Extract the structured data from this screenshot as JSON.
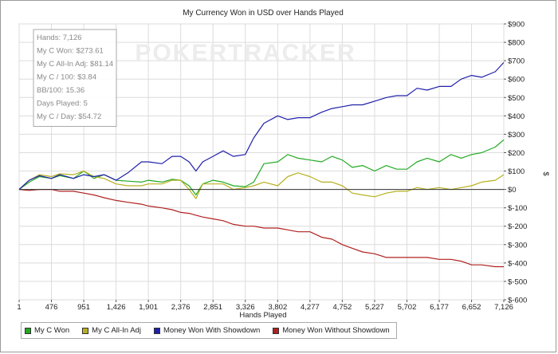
{
  "chart_data": {
    "type": "line",
    "title": "My Currency Won in USD over Hands Played",
    "xlabel": "Hands Played",
    "ylabel": "$",
    "x_ticks": [
      1,
      476,
      951,
      1426,
      1901,
      2376,
      2851,
      3326,
      3802,
      4277,
      4752,
      5227,
      5702,
      6177,
      6652,
      7126
    ],
    "xlim": [
      1,
      7126
    ],
    "ylim": [
      -600,
      900
    ],
    "y_ticks": [
      -600,
      -500,
      -400,
      -300,
      -200,
      -100,
      0,
      100,
      200,
      300,
      400,
      500,
      600,
      700,
      800,
      900
    ],
    "y_tick_labels": [
      "$-600",
      "$-500",
      "$-400",
      "$-300",
      "$-200",
      "$-100",
      "$0",
      "$100",
      "$200",
      "$300",
      "$400",
      "$500",
      "$600",
      "$700",
      "$800",
      "$900"
    ],
    "grid": true,
    "legend_position": "bottom-left",
    "watermark": "POKERTRACKER",
    "stats_box": [
      "Hands: 7,126",
      "My C Won: $273.61",
      "My C All-In Adj: $81.14",
      "My C / 100: $3.84",
      "BB/100: 15.36",
      "Days Played: 5",
      "My C / Day: $54.72"
    ],
    "series": [
      {
        "name": "My C Won",
        "color": "#22aa22",
        "points": [
          [
            1,
            0
          ],
          [
            150,
            40
          ],
          [
            300,
            70
          ],
          [
            476,
            60
          ],
          [
            600,
            75
          ],
          [
            800,
            60
          ],
          [
            951,
            100
          ],
          [
            1100,
            60
          ],
          [
            1250,
            80
          ],
          [
            1426,
            50
          ],
          [
            1600,
            45
          ],
          [
            1800,
            40
          ],
          [
            1901,
            50
          ],
          [
            2100,
            40
          ],
          [
            2250,
            55
          ],
          [
            2376,
            50
          ],
          [
            2500,
            20
          ],
          [
            2600,
            -30
          ],
          [
            2700,
            30
          ],
          [
            2851,
            50
          ],
          [
            3000,
            40
          ],
          [
            3150,
            20
          ],
          [
            3326,
            15
          ],
          [
            3450,
            40
          ],
          [
            3600,
            140
          ],
          [
            3802,
            150
          ],
          [
            3950,
            190
          ],
          [
            4100,
            170
          ],
          [
            4277,
            160
          ],
          [
            4450,
            150
          ],
          [
            4600,
            180
          ],
          [
            4752,
            160
          ],
          [
            4900,
            120
          ],
          [
            5050,
            130
          ],
          [
            5227,
            100
          ],
          [
            5400,
            130
          ],
          [
            5550,
            110
          ],
          [
            5702,
            110
          ],
          [
            5850,
            150
          ],
          [
            6000,
            170
          ],
          [
            6177,
            150
          ],
          [
            6350,
            190
          ],
          [
            6500,
            170
          ],
          [
            6652,
            190
          ],
          [
            6800,
            200
          ],
          [
            7000,
            230
          ],
          [
            7126,
            270
          ]
        ]
      },
      {
        "name": "My C All-In Adj",
        "color": "#b8b020",
        "points": [
          [
            1,
            0
          ],
          [
            150,
            50
          ],
          [
            300,
            80
          ],
          [
            476,
            70
          ],
          [
            600,
            85
          ],
          [
            800,
            80
          ],
          [
            951,
            100
          ],
          [
            1100,
            70
          ],
          [
            1250,
            60
          ],
          [
            1426,
            30
          ],
          [
            1600,
            20
          ],
          [
            1800,
            20
          ],
          [
            1901,
            30
          ],
          [
            2100,
            30
          ],
          [
            2250,
            50
          ],
          [
            2376,
            50
          ],
          [
            2500,
            0
          ],
          [
            2600,
            -50
          ],
          [
            2700,
            30
          ],
          [
            2851,
            30
          ],
          [
            3000,
            30
          ],
          [
            3150,
            0
          ],
          [
            3326,
            10
          ],
          [
            3450,
            20
          ],
          [
            3600,
            40
          ],
          [
            3802,
            20
          ],
          [
            3950,
            70
          ],
          [
            4100,
            90
          ],
          [
            4277,
            70
          ],
          [
            4450,
            40
          ],
          [
            4600,
            40
          ],
          [
            4752,
            20
          ],
          [
            4900,
            -20
          ],
          [
            5050,
            -30
          ],
          [
            5227,
            -40
          ],
          [
            5400,
            -20
          ],
          [
            5550,
            -10
          ],
          [
            5702,
            -10
          ],
          [
            5850,
            10
          ],
          [
            6000,
            0
          ],
          [
            6177,
            10
          ],
          [
            6350,
            0
          ],
          [
            6500,
            10
          ],
          [
            6652,
            20
          ],
          [
            6800,
            40
          ],
          [
            7000,
            50
          ],
          [
            7126,
            80
          ]
        ]
      },
      {
        "name": "Money Won With Showdown",
        "color": "#2020aa",
        "points": [
          [
            1,
            0
          ],
          [
            150,
            50
          ],
          [
            300,
            75
          ],
          [
            476,
            60
          ],
          [
            600,
            80
          ],
          [
            800,
            60
          ],
          [
            951,
            80
          ],
          [
            1100,
            70
          ],
          [
            1250,
            80
          ],
          [
            1426,
            50
          ],
          [
            1600,
            90
          ],
          [
            1800,
            150
          ],
          [
            1901,
            150
          ],
          [
            2100,
            140
          ],
          [
            2250,
            180
          ],
          [
            2376,
            180
          ],
          [
            2500,
            150
          ],
          [
            2600,
            100
          ],
          [
            2700,
            150
          ],
          [
            2851,
            180
          ],
          [
            3000,
            210
          ],
          [
            3150,
            180
          ],
          [
            3326,
            190
          ],
          [
            3450,
            280
          ],
          [
            3600,
            360
          ],
          [
            3802,
            400
          ],
          [
            3950,
            380
          ],
          [
            4100,
            390
          ],
          [
            4277,
            390
          ],
          [
            4450,
            420
          ],
          [
            4600,
            440
          ],
          [
            4752,
            450
          ],
          [
            4900,
            460
          ],
          [
            5050,
            460
          ],
          [
            5227,
            480
          ],
          [
            5400,
            500
          ],
          [
            5550,
            510
          ],
          [
            5702,
            510
          ],
          [
            5850,
            550
          ],
          [
            6000,
            540
          ],
          [
            6177,
            560
          ],
          [
            6350,
            560
          ],
          [
            6500,
            600
          ],
          [
            6652,
            620
          ],
          [
            6800,
            610
          ],
          [
            7000,
            640
          ],
          [
            7126,
            690
          ]
        ]
      },
      {
        "name": "Money Won Without Showdown",
        "color": "#b02020",
        "points": [
          [
            1,
            0
          ],
          [
            150,
            -5
          ],
          [
            300,
            0
          ],
          [
            476,
            0
          ],
          [
            600,
            -10
          ],
          [
            800,
            -10
          ],
          [
            951,
            -20
          ],
          [
            1100,
            -30
          ],
          [
            1250,
            -45
          ],
          [
            1426,
            -60
          ],
          [
            1600,
            -70
          ],
          [
            1800,
            -80
          ],
          [
            1901,
            -90
          ],
          [
            2100,
            -100
          ],
          [
            2250,
            -110
          ],
          [
            2376,
            -125
          ],
          [
            2500,
            -130
          ],
          [
            2600,
            -140
          ],
          [
            2700,
            -150
          ],
          [
            2851,
            -160
          ],
          [
            3000,
            -170
          ],
          [
            3150,
            -190
          ],
          [
            3326,
            -200
          ],
          [
            3450,
            -200
          ],
          [
            3600,
            -210
          ],
          [
            3802,
            -210
          ],
          [
            3950,
            -220
          ],
          [
            4100,
            -230
          ],
          [
            4277,
            -230
          ],
          [
            4450,
            -260
          ],
          [
            4600,
            -270
          ],
          [
            4752,
            -300
          ],
          [
            4900,
            -320
          ],
          [
            5050,
            -340
          ],
          [
            5227,
            -350
          ],
          [
            5400,
            -370
          ],
          [
            5550,
            -370
          ],
          [
            5702,
            -370
          ],
          [
            5850,
            -370
          ],
          [
            6000,
            -370
          ],
          [
            6177,
            -380
          ],
          [
            6350,
            -380
          ],
          [
            6500,
            -390
          ],
          [
            6652,
            -410
          ],
          [
            6800,
            -410
          ],
          [
            7000,
            -420
          ],
          [
            7126,
            -420
          ]
        ]
      }
    ]
  }
}
